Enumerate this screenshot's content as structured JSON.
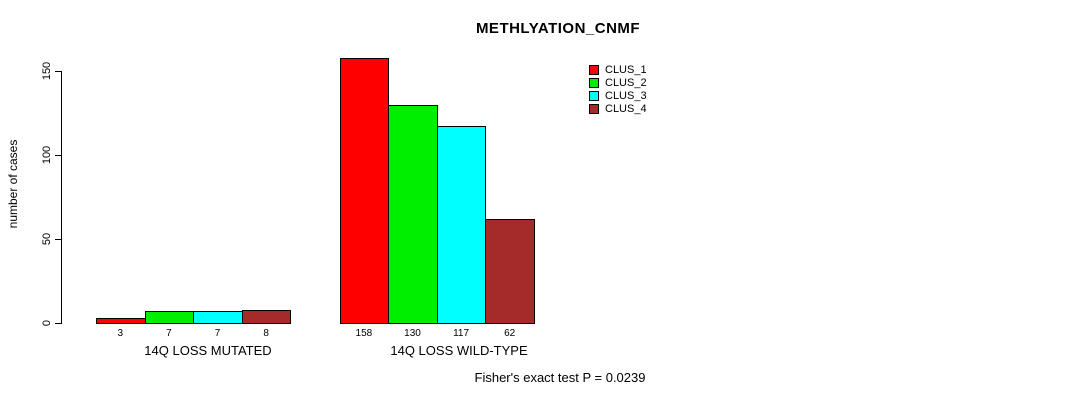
{
  "chart_data": {
    "type": "bar",
    "title": "METHLYATION_CNMF",
    "ylabel": "number of cases",
    "xlabel": "",
    "categories": [
      "14Q LOSS MUTATED",
      "14Q LOSS WILD-TYPE"
    ],
    "series": [
      {
        "name": "CLUS_1",
        "color": "#FF0000",
        "values": [
          3,
          158
        ]
      },
      {
        "name": "CLUS_2",
        "color": "#00EE00",
        "values": [
          7,
          130
        ]
      },
      {
        "name": "CLUS_3",
        "color": "#00FFFF",
        "values": [
          7,
          117
        ]
      },
      {
        "name": "CLUS_4",
        "color": "#A52A2A",
        "values": [
          8,
          62
        ]
      }
    ],
    "yticks": [
      0,
      50,
      100,
      150
    ],
    "ylim": [
      0,
      158
    ],
    "grid": false,
    "legend_position": "top-right",
    "bar_value_labels": true,
    "annotation": "Fisher's exact test P = 0.0239"
  }
}
